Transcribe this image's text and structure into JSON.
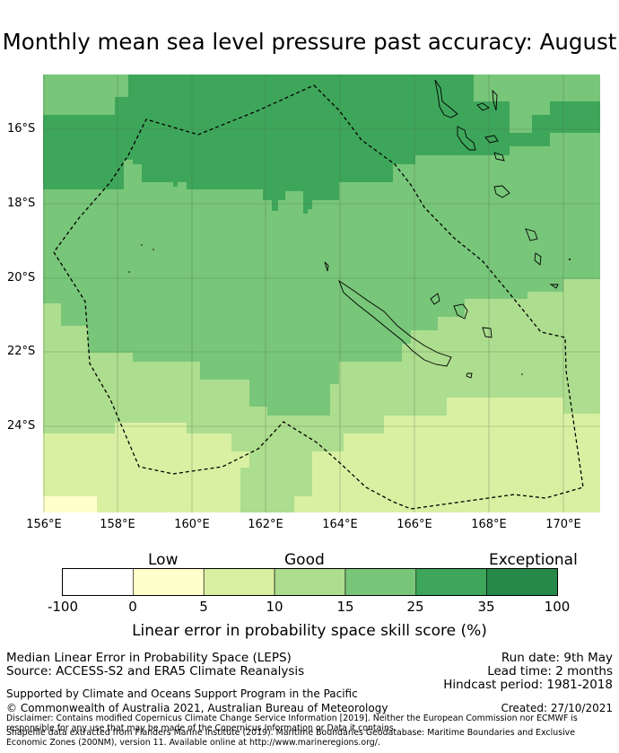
{
  "title": "Monthly mean sea level pressure past accuracy: August",
  "map": {
    "lat_labels": [
      "16°S",
      "18°S",
      "20°S",
      "22°S",
      "24°S"
    ],
    "lon_labels": [
      "156°E",
      "158°E",
      "160°E",
      "162°E",
      "164°E",
      "166°E",
      "168°E",
      "170°E"
    ],
    "lon_range": [
      156,
      171
    ],
    "lat_range": [
      -14.5,
      -26.3
    ],
    "boundary": "dashed black line (EEZ)",
    "colors": {
      "darkest": "#26894a",
      "dark": "#3ea65a",
      "medium": "#78c679",
      "light": "#addd8e",
      "lighter": "#d9f0a3",
      "palest": "#ffffcc",
      "none": "#ffffff"
    }
  },
  "colorbar": {
    "category_labels": [
      "Low",
      "Good",
      "Exceptional"
    ],
    "ticks": [
      "-100",
      "0",
      "5",
      "10",
      "15",
      "25",
      "35",
      "100"
    ],
    "bins": [
      {
        "from": "-100",
        "to": "0",
        "color": "#ffffff"
      },
      {
        "from": "0",
        "to": "5",
        "color": "#ffffcc"
      },
      {
        "from": "5",
        "to": "10",
        "color": "#d9f0a3"
      },
      {
        "from": "10",
        "to": "15",
        "color": "#addd8e"
      },
      {
        "from": "15",
        "to": "25",
        "color": "#78c679"
      },
      {
        "from": "25",
        "to": "35",
        "color": "#3ea65a"
      },
      {
        "from": "35",
        "to": "100",
        "color": "#26894a"
      }
    ],
    "caption": "Linear error in probability space skill score (%)"
  },
  "info": {
    "line1": "Median Linear Error in Probability Space (LEPS)",
    "line2": "Source: ACCESS-S2 and ERA5 Climate Reanalysis",
    "run_date": "Run date: 9th May",
    "lead_time": "Lead time: 2 months",
    "hindcast": "Hindcast period: 1981-2018",
    "supported": "Supported by Climate and Oceans Support Program in the Pacific",
    "copyright": "© Commonwealth of Australia 2021, Australian Bureau of Meteorology",
    "created": "Created: 27/10/2021",
    "disclaimer": "Disclaimer: Contains modified Copernicus Climate Change Service Information [2019]. Neither the European Commission nor ECMWF is responsible for any use that may be made of the Copernicus Information or Data it contains.",
    "shapefile": "Shapefile data extracted from Flanders Marine Institute (2019). Maritime Boundaries Geodatabase: Maritime Boundaries and Exclusive Economic Zones (200NM), version 11. Available online at http://www.marineregions.org/."
  }
}
